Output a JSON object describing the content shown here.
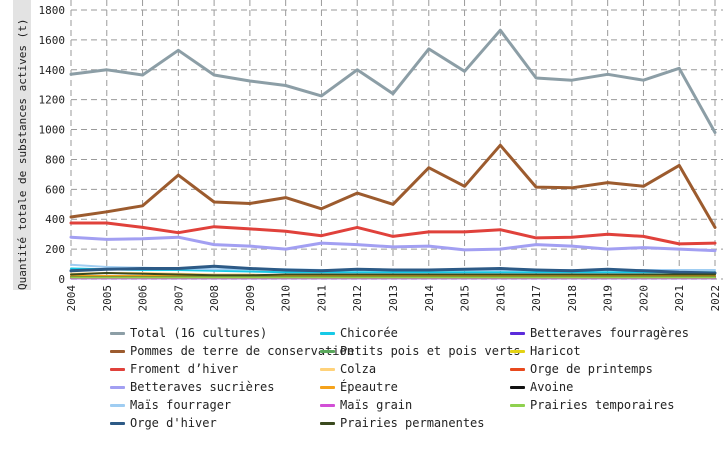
{
  "chart_data": {
    "type": "line",
    "title": "",
    "xlabel": "",
    "ylabel": "Quantité totale de substances actives (t)",
    "x": [
      "2004",
      "2005",
      "2006",
      "2007",
      "2008",
      "2009",
      "2010",
      "2011",
      "2012",
      "2013",
      "2014",
      "2015",
      "2016",
      "2017",
      "2018",
      "2019",
      "2020",
      "2021",
      "2022"
    ],
    "ylim": [
      0,
      1800
    ],
    "yticks": [
      0,
      200,
      400,
      600,
      800,
      1000,
      1200,
      1400,
      1600,
      1800
    ],
    "grid": true,
    "legend_position": "bottom",
    "series": [
      {
        "name": "Total (16 cultures)",
        "color": "#8c9ea6",
        "width": 3,
        "values": [
          1370,
          1400,
          1365,
          1530,
          1365,
          1325,
          1295,
          1225,
          1400,
          1240,
          1540,
          1390,
          1665,
          1345,
          1330,
          1370,
          1330,
          1410,
          980
        ]
      },
      {
        "name": "Chicorée",
        "color": "#17c9e6",
        "width": 2,
        "values": [
          70,
          65,
          60,
          60,
          55,
          50,
          45,
          45,
          45,
          45,
          45,
          45,
          45,
          45,
          45,
          45,
          45,
          45,
          45
        ]
      },
      {
        "name": "Betteraves fourragères",
        "color": "#5b2bdb",
        "width": 2,
        "values": [
          5,
          5,
          5,
          5,
          5,
          5,
          5,
          5,
          5,
          5,
          5,
          5,
          5,
          5,
          5,
          5,
          5,
          5,
          5
        ]
      },
      {
        "name": "Pommes de terre de conservation",
        "color": "#9c5b2e",
        "width": 3,
        "values": [
          415,
          450,
          490,
          695,
          515,
          505,
          545,
          470,
          575,
          500,
          745,
          620,
          895,
          615,
          610,
          645,
          620,
          760,
          345
        ]
      },
      {
        "name": "Petits pois et pois verts",
        "color": "#5aa85c",
        "width": 2,
        "values": [
          10,
          10,
          10,
          10,
          10,
          10,
          10,
          10,
          10,
          10,
          10,
          10,
          10,
          10,
          10,
          10,
          10,
          10,
          10
        ]
      },
      {
        "name": "Haricot",
        "color": "#e3d214",
        "width": 2,
        "values": [
          8,
          8,
          8,
          8,
          8,
          8,
          8,
          8,
          8,
          8,
          8,
          8,
          8,
          8,
          8,
          8,
          8,
          8,
          8
        ]
      },
      {
        "name": "Froment d’hiver",
        "color": "#e0413b",
        "width": 3,
        "values": [
          375,
          375,
          345,
          310,
          350,
          335,
          320,
          290,
          345,
          285,
          315,
          315,
          330,
          275,
          280,
          300,
          285,
          235,
          240
        ]
      },
      {
        "name": "Colza",
        "color": "#ffd27a",
        "width": 2,
        "values": [
          35,
          40,
          40,
          35,
          30,
          30,
          25,
          25,
          25,
          25,
          25,
          25,
          25,
          25,
          25,
          25,
          25,
          25,
          25
        ]
      },
      {
        "name": "Orge de printemps",
        "color": "#e8491d",
        "width": 2,
        "values": [
          15,
          15,
          15,
          15,
          15,
          15,
          15,
          15,
          15,
          15,
          15,
          15,
          15,
          15,
          15,
          15,
          15,
          15,
          15
        ]
      },
      {
        "name": "Betteraves sucrières",
        "color": "#a29ff2",
        "width": 3,
        "values": [
          280,
          265,
          270,
          280,
          230,
          220,
          200,
          240,
          230,
          215,
          220,
          195,
          200,
          230,
          220,
          200,
          210,
          200,
          190
        ]
      },
      {
        "name": "Épeautre",
        "color": "#f5a21b",
        "width": 2,
        "values": [
          20,
          20,
          20,
          20,
          20,
          20,
          20,
          20,
          20,
          20,
          20,
          20,
          20,
          20,
          20,
          20,
          20,
          20,
          20
        ]
      },
      {
        "name": "Avoine",
        "color": "#111111",
        "width": 2,
        "values": [
          12,
          12,
          12,
          12,
          12,
          12,
          12,
          12,
          12,
          12,
          12,
          12,
          12,
          12,
          12,
          12,
          12,
          12,
          12
        ]
      },
      {
        "name": "Maïs fourrager",
        "color": "#9fcdf2",
        "width": 2,
        "values": [
          95,
          80,
          75,
          70,
          65,
          65,
          65,
          60,
          60,
          60,
          60,
          60,
          60,
          60,
          60,
          60,
          60,
          60,
          60
        ]
      },
      {
        "name": "Maïs grain",
        "color": "#d24fd6",
        "width": 2,
        "values": [
          6,
          6,
          6,
          6,
          6,
          6,
          6,
          6,
          6,
          6,
          6,
          6,
          6,
          6,
          6,
          6,
          6,
          6,
          6
        ]
      },
      {
        "name": "Prairies temporaires",
        "color": "#8fd14f",
        "width": 2,
        "values": [
          10,
          10,
          10,
          10,
          10,
          10,
          10,
          10,
          10,
          10,
          10,
          10,
          10,
          10,
          10,
          10,
          10,
          10,
          10
        ]
      },
      {
        "name": "Orge d'hiver",
        "color": "#2d5a86",
        "width": 3,
        "values": [
          55,
          65,
          70,
          70,
          85,
          70,
          60,
          55,
          65,
          60,
          60,
          65,
          70,
          60,
          55,
          65,
          55,
          45,
          40
        ]
      },
      {
        "name": "Prairies permanentes",
        "color": "#3a4a1e",
        "width": 2,
        "values": [
          30,
          40,
          35,
          30,
          25,
          25,
          30,
          30,
          30,
          30,
          30,
          30,
          30,
          30,
          30,
          30,
          30,
          30,
          30
        ]
      }
    ]
  },
  "legend": {
    "items": [
      {
        "label": "Total (16 cultures)",
        "color": "#8c9ea6"
      },
      {
        "label": "Chicorée",
        "color": "#17c9e6"
      },
      {
        "label": "Betteraves fourragères",
        "color": "#5b2bdb"
      },
      {
        "label": "Pommes de terre de conservation",
        "color": "#9c5b2e"
      },
      {
        "label": "Petits pois et pois verts",
        "color": "#5aa85c"
      },
      {
        "label": "Haricot",
        "color": "#e3d214"
      },
      {
        "label": "Froment d’hiver",
        "color": "#e0413b"
      },
      {
        "label": "Colza",
        "color": "#ffd27a"
      },
      {
        "label": "Orge de printemps",
        "color": "#e8491d"
      },
      {
        "label": "Betteraves sucrières",
        "color": "#a29ff2"
      },
      {
        "label": "Épeautre",
        "color": "#f5a21b"
      },
      {
        "label": "Avoine",
        "color": "#111111"
      },
      {
        "label": "Maïs fourrager",
        "color": "#9fcdf2"
      },
      {
        "label": "Maïs grain",
        "color": "#d24fd6"
      },
      {
        "label": "Prairies temporaires",
        "color": "#8fd14f"
      },
      {
        "label": "Orge d'hiver",
        "color": "#2d5a86"
      },
      {
        "label": "Prairies permanentes",
        "color": "#3a4a1e"
      }
    ]
  }
}
